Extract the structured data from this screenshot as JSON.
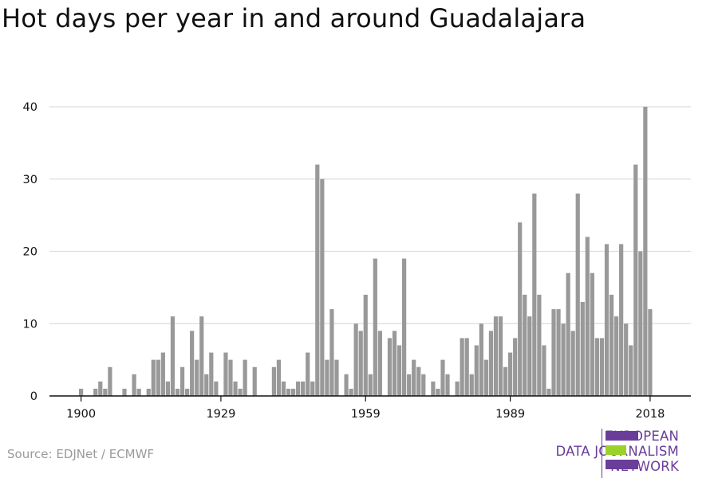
{
  "title": "Hot days per year in and around Guadalajara",
  "source": "Source: EDJNet / ECMWF",
  "logo": {
    "lines": [
      "EUROPEAN",
      "DATA JOURNALISM",
      "NETWORK"
    ],
    "colors": {
      "purple": "#6a3d9a",
      "green": "#9bd22a"
    }
  },
  "colors": {
    "bar": "#999999",
    "grid": "#dddddd",
    "axis": "#111111"
  },
  "chart_data": {
    "type": "bar",
    "title": "Hot days per year in and around Guadalajara",
    "xlabel": "",
    "ylabel": "",
    "ylim": [
      0,
      40
    ],
    "yticks": [
      0,
      10,
      20,
      30,
      40
    ],
    "xticks": [
      1900,
      1929,
      1959,
      1989,
      2018
    ],
    "grid": true,
    "legend": "none",
    "categories": [
      1900,
      1901,
      1902,
      1903,
      1904,
      1905,
      1906,
      1907,
      1908,
      1909,
      1910,
      1911,
      1912,
      1913,
      1914,
      1915,
      1916,
      1917,
      1918,
      1919,
      1920,
      1921,
      1922,
      1923,
      1924,
      1925,
      1926,
      1927,
      1928,
      1929,
      1930,
      1931,
      1932,
      1933,
      1934,
      1935,
      1936,
      1937,
      1938,
      1939,
      1940,
      1941,
      1942,
      1943,
      1944,
      1945,
      1946,
      1947,
      1948,
      1949,
      1950,
      1951,
      1952,
      1953,
      1954,
      1955,
      1956,
      1957,
      1958,
      1959,
      1960,
      1961,
      1962,
      1963,
      1964,
      1965,
      1966,
      1967,
      1968,
      1969,
      1970,
      1971,
      1972,
      1973,
      1974,
      1975,
      1976,
      1977,
      1978,
      1979,
      1980,
      1981,
      1982,
      1983,
      1984,
      1985,
      1986,
      1987,
      1988,
      1989,
      1990,
      1991,
      1992,
      1993,
      1994,
      1995,
      1996,
      1997,
      1998,
      1999,
      2000,
      2001,
      2002,
      2003,
      2004,
      2005,
      2006,
      2007,
      2008,
      2009,
      2010,
      2011,
      2012,
      2013,
      2014,
      2015,
      2016,
      2017,
      2018,
      2019
    ],
    "values": [
      1,
      0,
      0,
      1,
      2,
      1,
      4,
      0,
      0,
      1,
      0,
      3,
      1,
      0,
      1,
      5,
      5,
      6,
      2,
      11,
      1,
      4,
      1,
      9,
      5,
      11,
      3,
      6,
      2,
      0,
      6,
      5,
      2,
      1,
      5,
      0,
      4,
      0,
      0,
      0,
      4,
      5,
      2,
      1,
      1,
      2,
      2,
      6,
      2,
      32,
      30,
      5,
      12,
      5,
      0,
      3,
      1,
      10,
      9,
      14,
      3,
      19,
      9,
      0,
      8,
      9,
      7,
      19,
      3,
      5,
      4,
      3,
      0,
      2,
      1,
      5,
      3,
      0,
      2,
      8,
      8,
      3,
      7,
      10,
      5,
      9,
      11,
      11,
      4,
      6,
      8,
      24,
      14,
      11,
      28,
      14,
      7,
      1,
      12,
      12,
      10,
      17,
      9,
      28,
      13,
      22,
      17,
      8,
      8,
      21,
      14,
      11,
      21,
      10,
      7,
      32,
      20,
      40,
      12,
      0
    ]
  }
}
